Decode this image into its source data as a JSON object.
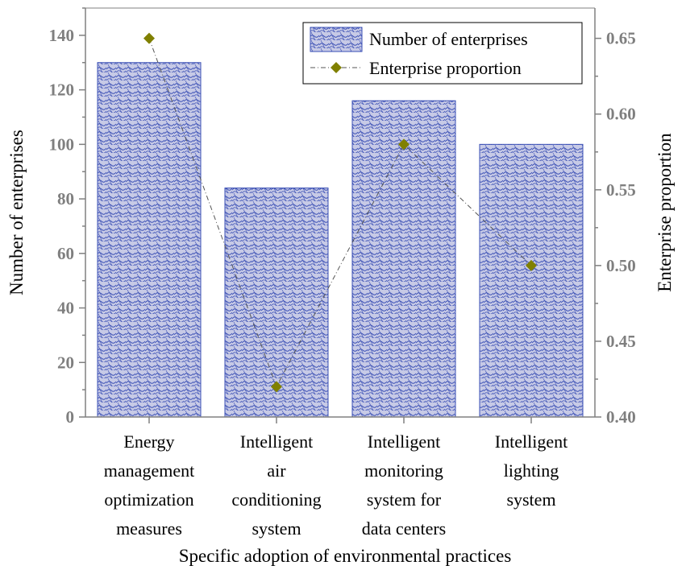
{
  "chart_data": {
    "type": "bar+line",
    "title": "",
    "xlabel": "Specific adoption of environmental practices",
    "ylabel_left": "Number of enterprises",
    "ylabel_right": "Enterprise proportion",
    "categories": [
      [
        "Energy",
        "management",
        "optimization",
        "measures"
      ],
      [
        "Intelligent",
        "air",
        "conditioning",
        "system"
      ],
      [
        "Intelligent",
        "monitoring",
        "system for",
        "data centers"
      ],
      [
        "Intelligent",
        "lighting",
        "system"
      ]
    ],
    "series": [
      {
        "name": "Number of enterprises",
        "kind": "bar",
        "axis": "left",
        "values": [
          130,
          84,
          116,
          100
        ]
      },
      {
        "name": "Enterprise proportion",
        "kind": "line",
        "axis": "right",
        "values": [
          0.65,
          0.42,
          0.58,
          0.5
        ]
      }
    ],
    "ylim_left": [
      0,
      150
    ],
    "yticks_left": [
      "0",
      "20",
      "40",
      "60",
      "80",
      "100",
      "120",
      "140"
    ],
    "ylim_right": [
      0.4,
      0.67
    ],
    "yticks_right": [
      "0.40",
      "0.45",
      "0.50",
      "0.55",
      "0.60",
      "0.65"
    ],
    "legend_position": "top-right",
    "colors": {
      "bar_fill": "#c7cae6",
      "bar_hatch": "#3a4fb5",
      "line": "#555555",
      "marker": "#808000",
      "axis": "#808080"
    }
  }
}
